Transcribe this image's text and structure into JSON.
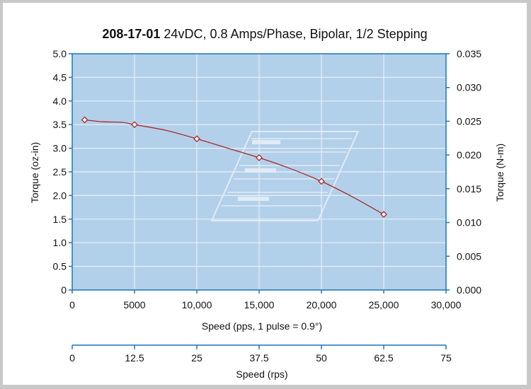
{
  "chart_data": {
    "type": "line",
    "title_part_bold": "208-17-01",
    "title_part_rest": " 24vDC, 0.8 Amps/Phase, Bipolar, 1/2 Stepping",
    "xlabel": "Speed (pps, 1 pulse = 0.9°)",
    "x2label": "Speed (rps)",
    "ylabel": "Torque (oz-in)",
    "y2label": "Torque (N-m)",
    "xlim": [
      0,
      30000
    ],
    "ylim": [
      0,
      5.0
    ],
    "y2lim": [
      0,
      0.035
    ],
    "x_ticks": [
      "0",
      "5000",
      "10,000",
      "15,000",
      "20,000",
      "25,000",
      "30,000"
    ],
    "x2_ticks": [
      "0",
      "12.5",
      "25",
      "37.5",
      "50",
      "62.5",
      "75"
    ],
    "y_ticks": [
      "0",
      "0.5",
      "1.0",
      "1.5",
      "2.0",
      "2.5",
      "3.0",
      "3.5",
      "4.0",
      "4.5",
      "5.0"
    ],
    "y2_ticks": [
      "0.000",
      "0.005",
      "0.010",
      "0.015",
      "0.020",
      "0.025",
      "0.030",
      "0.035"
    ],
    "grid": true,
    "colors": {
      "plot_background": "#b3d0ea",
      "grid": "#e8f0f8",
      "axis": "#1a75bc",
      "line": "#a52a2a",
      "marker_fill": "#ffffff",
      "watermark": "#e6eef6"
    },
    "series": [
      {
        "x": [
          1000,
          5000,
          10000,
          15000,
          20000,
          25000
        ],
        "y": [
          3.6,
          3.5,
          3.2,
          2.8,
          2.3,
          1.6
        ]
      }
    ],
    "curve": {
      "x": [
        1000,
        2500,
        4000,
        5000,
        7500,
        10000,
        12500,
        15000,
        17500,
        20000,
        22500,
        25000
      ],
      "y": [
        3.6,
        3.56,
        3.55,
        3.5,
        3.38,
        3.2,
        3.0,
        2.8,
        2.57,
        2.3,
        1.97,
        1.6
      ]
    }
  }
}
